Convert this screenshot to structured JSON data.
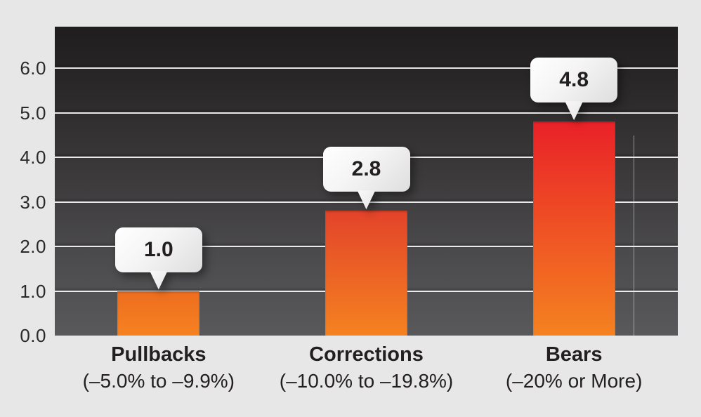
{
  "page": {
    "background_color": "#e7e7e8",
    "plot_bg_top_color": "#201d1e",
    "plot_bg_bottom_color": "#59595b",
    "gridline_color": "#f3f3f3",
    "text_color": "#231f20"
  },
  "chart_data": {
    "type": "bar",
    "title": "",
    "xlabel": "",
    "ylabel": "",
    "categories": [
      "Pullbacks",
      "Corrections",
      "Bears"
    ],
    "category_sublabels": [
      "(–5.0% to –9.9%)",
      "(–10.0% to –19.8%)",
      "(–20% or More)"
    ],
    "values": [
      1.0,
      2.8,
      4.8
    ],
    "value_labels": [
      "1.0",
      "2.8",
      "4.8"
    ],
    "yticks": [
      "0.0",
      "1.0",
      "2.0",
      "3.0",
      "4.0",
      "5.0",
      "6.0"
    ],
    "ylim": [
      0,
      6.93
    ],
    "grid": "horizontal",
    "legend_position": "none",
    "annotations": "value callout bubbles above each bar",
    "bar_gradients": [
      {
        "top": "#ee6d1f",
        "bottom": "#f58220"
      },
      {
        "top": "#e3432a",
        "bottom": "#f58220"
      },
      {
        "top": "#e92128",
        "bottom": "#f58220"
      }
    ]
  }
}
